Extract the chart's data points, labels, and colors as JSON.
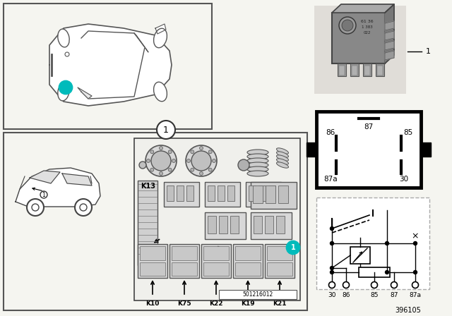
{
  "background_color": "#f5f5f0",
  "border_color": "#000000",
  "cyan_color": "#00BBBB",
  "part_number": "396105",
  "diagram_number": "501216012",
  "fuse_labels": [
    "K10",
    "K75",
    "K22",
    "K19",
    "K21"
  ],
  "pin_labels": [
    "30",
    "86",
    "85",
    "87",
    "87a"
  ],
  "relay_pins": [
    "87",
    "86",
    "85",
    "87a",
    "30"
  ]
}
